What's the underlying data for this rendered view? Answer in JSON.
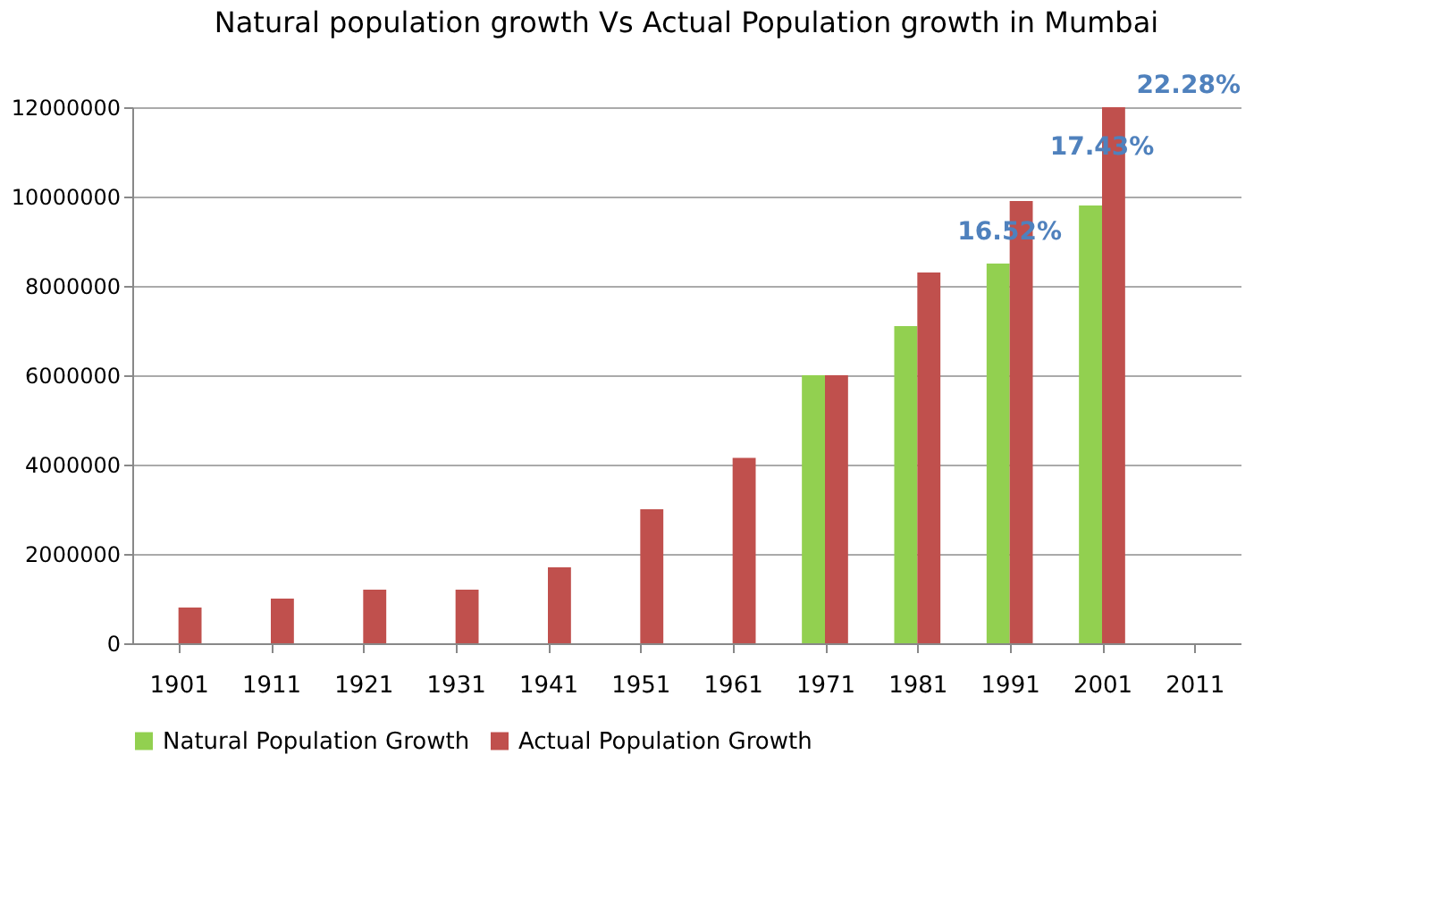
{
  "chart_data": {
    "type": "bar",
    "title": "Natural population growth Vs Actual Population growth in Mumbai",
    "categories": [
      "1901",
      "1911",
      "1921",
      "1931",
      "1941",
      "1951",
      "1961",
      "1971",
      "1981",
      "1991",
      "2001",
      "2011"
    ],
    "series": [
      {
        "name": "Natural Population Growth",
        "color": "#92d050",
        "values": [
          null,
          null,
          null,
          null,
          null,
          null,
          null,
          6000000,
          7100000,
          8500000,
          9800000,
          null
        ]
      },
      {
        "name": "Actual Population Growth",
        "color": "#c0504d",
        "values": [
          800000,
          1000000,
          1200000,
          1200000,
          1700000,
          3000000,
          4150000,
          6000000,
          8300000,
          9900000,
          12000000,
          null
        ]
      }
    ],
    "ylim": [
      0,
      12000000
    ],
    "yticks": [
      0,
      2000000,
      4000000,
      6000000,
      8000000,
      10000000,
      12000000
    ],
    "grid": "y",
    "legend": "bottom",
    "annotations": [
      {
        "text": "16.52%",
        "x": "1991",
        "y": 8800000
      },
      {
        "text": "17.43%",
        "x": "2001",
        "y": 10700000
      },
      "22.28%"
    ]
  }
}
